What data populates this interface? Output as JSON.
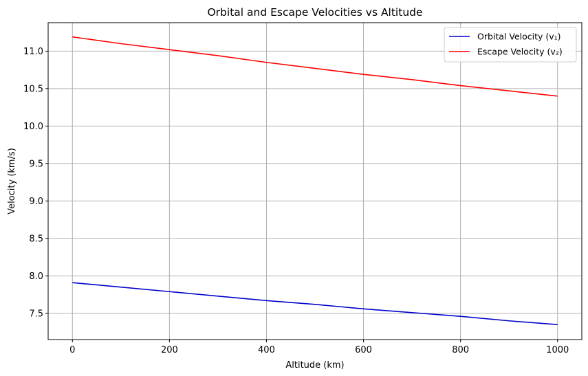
{
  "chart_data": {
    "type": "line",
    "title": "Orbital and Escape Velocities vs Altitude",
    "xlabel": "Altitude (km)",
    "ylabel": "Velocity (km/s)",
    "xlim": [
      -50,
      1050
    ],
    "ylim": [
      7.15,
      11.38
    ],
    "xticks": [
      0,
      200,
      400,
      600,
      800,
      1000
    ],
    "xtick_labels": [
      "0",
      "200",
      "400",
      "600",
      "800",
      "1000"
    ],
    "yticks": [
      7.5,
      8.0,
      8.5,
      9.0,
      9.5,
      10.0,
      10.5,
      11.0
    ],
    "ytick_labels": [
      "7.5",
      "8.0",
      "8.5",
      "9.0",
      "9.5",
      "10.0",
      "10.5",
      "11.0"
    ],
    "grid": true,
    "legend_position": "top-right",
    "x": [
      0,
      100,
      200,
      300,
      400,
      500,
      600,
      700,
      800,
      900,
      1000
    ],
    "series": [
      {
        "name": "Orbital Velocity (v₁)",
        "color": "#0000cc",
        "values": [
          7.91,
          7.85,
          7.79,
          7.73,
          7.67,
          7.62,
          7.56,
          7.51,
          7.46,
          7.4,
          7.35
        ]
      },
      {
        "name": "Escape Velocity (v₂)",
        "color": "#ff0000",
        "values": [
          11.19,
          11.1,
          11.02,
          10.94,
          10.85,
          10.77,
          10.69,
          10.62,
          10.54,
          10.47,
          10.4
        ]
      }
    ]
  }
}
